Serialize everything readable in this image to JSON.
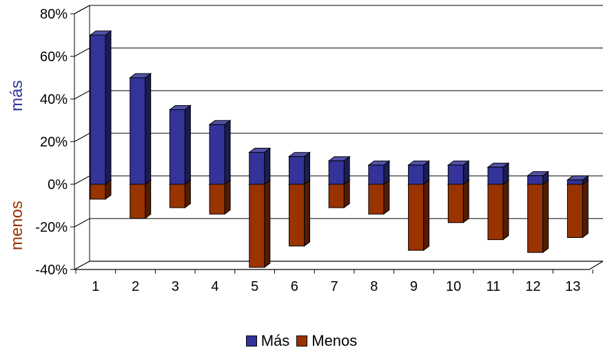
{
  "chart_data": {
    "type": "bar",
    "stacked_around_zero": true,
    "categories": [
      "1",
      "2",
      "3",
      "4",
      "5",
      "6",
      "7",
      "8",
      "9",
      "10",
      "11",
      "12",
      "13"
    ],
    "series": [
      {
        "name": "Más",
        "color": "#333399",
        "values": [
          70,
          50,
          35,
          28,
          15,
          13,
          11,
          9,
          9,
          9,
          8,
          4,
          2
        ]
      },
      {
        "name": "Menos",
        "color": "#993300",
        "values": [
          -7,
          -16,
          -11,
          -14,
          -39,
          -29,
          -11,
          -14,
          -31,
          -18,
          -26,
          -32,
          -25
        ]
      }
    ],
    "y_ticks": [
      "80%",
      "60%",
      "40%",
      "20%",
      "0%",
      "-20%",
      "-40%"
    ],
    "ylim": [
      -40,
      80
    ],
    "grid": true,
    "legend_position": "bottom",
    "side_labels": {
      "top": "más",
      "bottom": "menos"
    },
    "colors": {
      "mas": "#333399",
      "menos": "#993300"
    }
  }
}
